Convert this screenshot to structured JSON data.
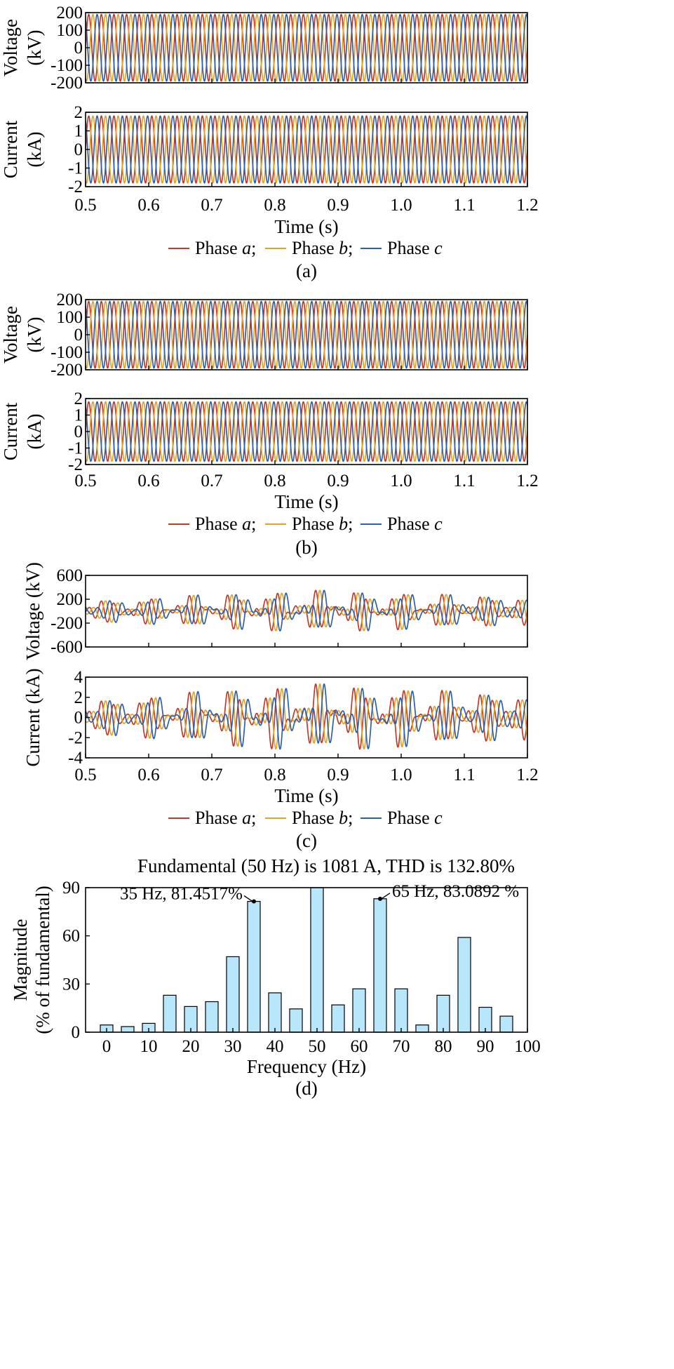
{
  "colors": {
    "phase_a": "#c0392b",
    "phase_b": "#e0a526",
    "phase_c": "#2e5fa8",
    "bar": "#b8e6fa"
  },
  "legend": [
    {
      "line": "—",
      "text": "Phase ",
      "ital": "a",
      "sep": ";"
    },
    {
      "line": "—",
      "text": "Phase ",
      "ital": "b",
      "sep": ";"
    },
    {
      "line": "—",
      "text": "Phase ",
      "ital": "c",
      "sep": ""
    }
  ],
  "chart_data": [
    {
      "type": "line",
      "panel": "a",
      "caption": "(a)",
      "top": {
        "ylabel": [
          "Voltage",
          "(kV)"
        ],
        "ylim": [
          -200,
          200
        ],
        "yticks": [
          "200",
          "100",
          "0",
          "-100",
          "-200"
        ],
        "amplitude": 190
      },
      "bottom": {
        "ylabel": [
          "Current",
          "(kA)"
        ],
        "ylim": [
          -2,
          2
        ],
        "yticks": [
          "2",
          "1",
          "0",
          "-1",
          "-2"
        ],
        "amplitude": 1.8
      },
      "xlim": [
        0.5,
        1.2
      ],
      "xticks": [
        "0.5",
        "0.6",
        "0.7",
        "0.8",
        "0.9",
        "1.0",
        "1.1",
        "1.2"
      ],
      "xlabel": "Time (s)",
      "frequency_hz": 50,
      "series": [
        "Phase a",
        "Phase b",
        "Phase c"
      ]
    },
    {
      "type": "line",
      "panel": "b",
      "caption": "(b)",
      "top": {
        "ylabel": [
          "Voltage",
          "(kV)"
        ],
        "ylim": [
          -200,
          200
        ],
        "yticks": [
          "200",
          "100",
          "0",
          "-100",
          "-200"
        ],
        "amplitude": 190
      },
      "bottom": {
        "ylabel": [
          "Current",
          "(kA)"
        ],
        "ylim": [
          -2,
          2
        ],
        "yticks": [
          "2",
          "1",
          "0",
          "-1",
          "-2"
        ],
        "amplitude": 1.8
      },
      "xlim": [
        0.5,
        1.2
      ],
      "xticks": [
        "0.5",
        "0.6",
        "0.7",
        "0.8",
        "0.9",
        "1.0",
        "1.1",
        "1.2"
      ],
      "xlabel": "Time (s)",
      "frequency_hz": 50,
      "series": [
        "Phase a",
        "Phase b",
        "Phase c"
      ]
    },
    {
      "type": "line",
      "panel": "c",
      "caption": "(c)",
      "top": {
        "ylabel": [
          "Voltage (kV)"
        ],
        "ylim": [
          -600,
          600
        ],
        "yticks": [
          "600",
          "200",
          "-200",
          "-600"
        ],
        "ytick_values": [
          600,
          200,
          -200,
          -600
        ],
        "amplitude": 200
      },
      "bottom": {
        "ylabel": [
          "Current (kA)"
        ],
        "ylim": [
          -4,
          4
        ],
        "yticks": [
          "4",
          "2",
          "0",
          "-2",
          "-4"
        ],
        "amplitude": 1.9
      },
      "xlim": [
        0.5,
        1.2
      ],
      "xticks": [
        "0.5",
        "0.6",
        "0.7",
        "0.8",
        "0.9",
        "1.0",
        "1.1",
        "1.2"
      ],
      "xlabel": "Time (s)",
      "frequency_hz": 50,
      "subsync_components_hz": [
        35,
        65
      ],
      "series": [
        "Phase a",
        "Phase b",
        "Phase c"
      ]
    },
    {
      "type": "bar",
      "panel": "d",
      "caption": "(d)",
      "title": "Fundamental (50 Hz) is 1081 A, THD is 132.80%",
      "xlabel": "Frequency (Hz)",
      "ylabel": [
        "Magnitude",
        "(% of fundamental)"
      ],
      "x": [
        0,
        5,
        10,
        15,
        20,
        25,
        30,
        35,
        40,
        45,
        50,
        55,
        60,
        65,
        70,
        75,
        80,
        85,
        90,
        95
      ],
      "values": [
        4.5,
        3.5,
        5.5,
        23,
        16,
        19,
        47,
        81.4517,
        24.5,
        14.5,
        90,
        17,
        27,
        83.0892,
        27,
        4.5,
        23,
        59,
        15.5,
        10
      ],
      "xlim": [
        -5,
        100
      ],
      "ylim": [
        0,
        90
      ],
      "xticks": [
        "0",
        "10",
        "20",
        "30",
        "40",
        "50",
        "60",
        "70",
        "80",
        "90",
        "100"
      ],
      "yticks": [
        "0",
        "30",
        "60",
        "90"
      ],
      "annotations": [
        {
          "x": 35,
          "y": 81.4517,
          "text": "35 Hz, 81.4517%"
        },
        {
          "x": 65,
          "y": 83.0892,
          "text": "65 Hz, 83.0892 %"
        }
      ]
    }
  ]
}
